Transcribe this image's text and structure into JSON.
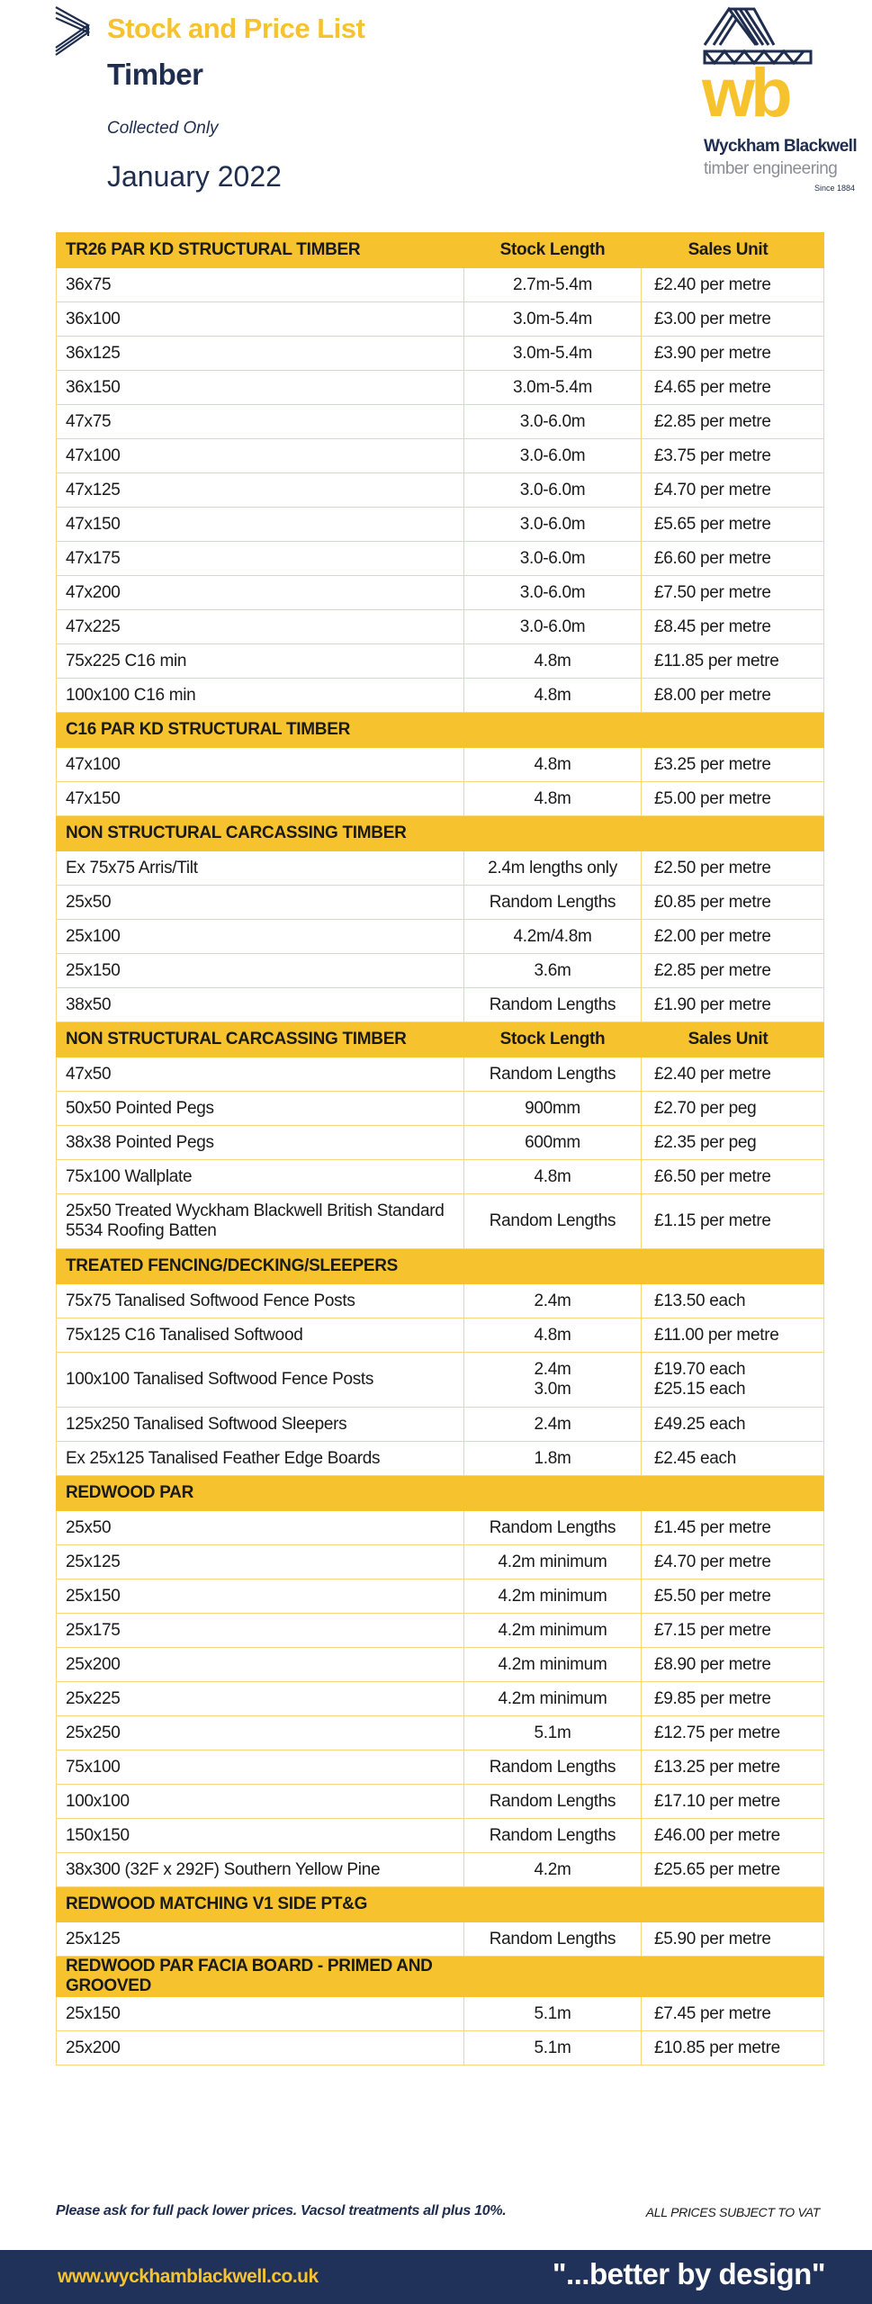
{
  "header": {
    "title": "Stock and Price List",
    "subtitle": "Timber",
    "collection": "Collected Only",
    "date": "January 2022"
  },
  "logo": {
    "letters": "wb",
    "name": "Wyckham Blackwell",
    "tagline": "timber engineering",
    "since": "Since 1884"
  },
  "colors": {
    "accent": "#f6c32e",
    "navy": "#20325a"
  },
  "sections": [
    {
      "title": "TR26 PAR KD STRUCTURAL TIMBER",
      "col2": "Stock Length",
      "col3": "Sales Unit",
      "rows": [
        [
          "36x75",
          "2.7m-5.4m",
          "£2.40 per metre"
        ],
        [
          "36x100",
          "3.0m-5.4m",
          "£3.00 per metre"
        ],
        [
          "36x125",
          "3.0m-5.4m",
          "£3.90 per metre"
        ],
        [
          "36x150",
          "3.0m-5.4m",
          "£4.65 per metre"
        ],
        [
          "47x75",
          "3.0-6.0m",
          "£2.85 per metre"
        ],
        [
          "47x100",
          "3.0-6.0m",
          "£3.75 per metre"
        ],
        [
          "47x125",
          "3.0-6.0m",
          "£4.70 per metre"
        ],
        [
          "47x150",
          "3.0-6.0m",
          "£5.65 per metre"
        ],
        [
          "47x175",
          "3.0-6.0m",
          "£6.60 per metre"
        ],
        [
          "47x200",
          "3.0-6.0m",
          "£7.50 per metre"
        ],
        [
          "47x225",
          "3.0-6.0m",
          "£8.45 per metre"
        ],
        [
          "75x225 C16 min",
          "4.8m",
          "£11.85 per metre"
        ],
        [
          "100x100 C16 min",
          "4.8m",
          "£8.00 per metre"
        ]
      ]
    },
    {
      "title": "C16 PAR KD STRUCTURAL TIMBER",
      "rows": [
        [
          "47x100",
          "4.8m",
          "£3.25 per metre"
        ],
        [
          "47x150",
          "4.8m",
          "£5.00 per metre"
        ]
      ]
    },
    {
      "title": "NON STRUCTURAL CARCASSING TIMBER",
      "rows": [
        [
          "Ex 75x75 Arris/Tilt",
          "2.4m lengths only",
          "£2.50 per metre"
        ],
        [
          "25x50",
          "Random Lengths",
          "£0.85 per metre"
        ],
        [
          "25x100",
          "4.2m/4.8m",
          "£2.00 per metre"
        ],
        [
          "25x150",
          "3.6m",
          "£2.85 per metre"
        ],
        [
          "38x50",
          "Random Lengths",
          "£1.90 per metre"
        ]
      ]
    },
    {
      "title": "NON STRUCTURAL CARCASSING TIMBER",
      "col2": "Stock Length",
      "col3": "Sales Unit",
      "rows": [
        [
          "47x50",
          "Random Lengths",
          "£2.40 per metre"
        ],
        [
          "50x50 Pointed Pegs",
          "900mm",
          "£2.70 per peg"
        ],
        [
          "38x38 Pointed Pegs",
          "600mm",
          "£2.35 per peg"
        ],
        [
          "75x100 Wallplate",
          "4.8m",
          "£6.50 per metre"
        ],
        [
          "25x50 Treated Wyckham Blackwell British Standard 5534 Roofing Batten",
          "Random Lengths",
          "£1.15 per metre"
        ]
      ]
    },
    {
      "title": "TREATED FENCING/DECKING/SLEEPERS",
      "rows": [
        [
          "75x75 Tanalised Softwood Fence Posts",
          "2.4m",
          "£13.50 each"
        ],
        [
          "75x125 C16 Tanalised Softwood",
          "4.8m",
          "£11.00 per metre"
        ],
        [
          "100x100 Tanalised Softwood Fence Posts",
          "2.4m\n3.0m",
          "£19.70 each\n£25.15 each"
        ],
        [
          "125x250 Tanalised Softwood Sleepers",
          "2.4m",
          "£49.25 each"
        ],
        [
          "Ex 25x125 Tanalised Feather Edge Boards",
          "1.8m",
          "£2.45 each"
        ]
      ]
    },
    {
      "title": "REDWOOD PAR",
      "rows": [
        [
          "25x50",
          "Random Lengths",
          "£1.45 per metre"
        ],
        [
          "25x125",
          "4.2m minimum",
          "£4.70 per metre"
        ],
        [
          "25x150",
          "4.2m minimum",
          "£5.50 per metre"
        ],
        [
          "25x175",
          "4.2m minimum",
          "£7.15 per metre"
        ],
        [
          "25x200",
          "4.2m minimum",
          "£8.90 per metre"
        ],
        [
          "25x225",
          "4.2m minimum",
          "£9.85 per metre"
        ],
        [
          "25x250",
          "5.1m",
          "£12.75 per metre"
        ],
        [
          "75x100",
          "Random Lengths",
          "£13.25 per metre"
        ],
        [
          "100x100",
          "Random Lengths",
          "£17.10 per metre"
        ],
        [
          "150x150",
          "Random Lengths",
          "£46.00 per metre"
        ],
        [
          "38x300 (32F x 292F) Southern Yellow Pine",
          "4.2m",
          "£25.65 per metre"
        ]
      ]
    },
    {
      "title": "REDWOOD MATCHING V1 SIDE PT&G",
      "rows": [
        [
          "25x125",
          "Random Lengths",
          "£5.90 per metre"
        ]
      ]
    },
    {
      "title": "REDWOOD PAR FACIA BOARD - PRIMED AND GROOVED",
      "rows": [
        [
          "25x150",
          "5.1m",
          "£7.45 per metre"
        ],
        [
          "25x200",
          "5.1m",
          "£10.85 per metre"
        ]
      ]
    }
  ],
  "notes": {
    "left": "Please ask for full pack lower prices.  Vacsol treatments all plus 10%.",
    "right": "ALL PRICES SUBJECT TO VAT"
  },
  "footer": {
    "url": "www.wyckhamblackwell.co.uk",
    "tagline": "\"...better by design\""
  }
}
